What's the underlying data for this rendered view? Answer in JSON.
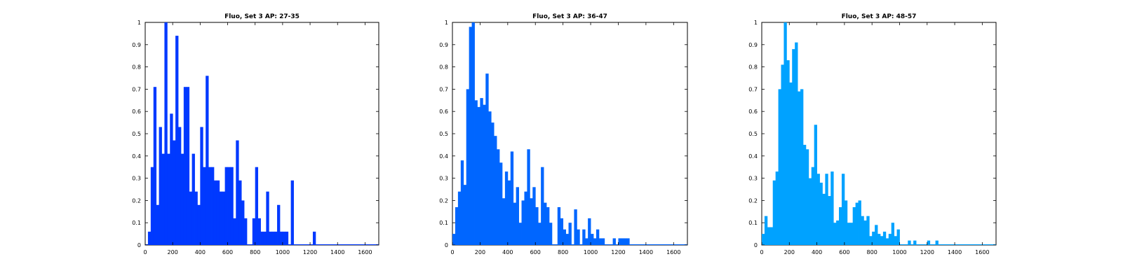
{
  "chart_data": [
    {
      "type": "bar",
      "title": "Fluo, Set 3 AP: 27-35",
      "color": "#0039ff",
      "xlim": [
        0,
        1700
      ],
      "ylim": [
        0,
        1
      ],
      "xticks": [
        0,
        200,
        400,
        600,
        800,
        1000,
        1200,
        1400,
        1600
      ],
      "yticks": [
        0,
        0.1,
        0.2,
        0.3,
        0.4,
        0.5,
        0.6,
        0.7,
        0.8,
        0.9,
        1
      ],
      "bin_width": 20,
      "series": [
        {
          "x": [
            30,
            50,
            70,
            90,
            110,
            130,
            150,
            170,
            190,
            210,
            230,
            250,
            270,
            290,
            310,
            330,
            350,
            370,
            390,
            410,
            430,
            450,
            470,
            490,
            510,
            530,
            550,
            570,
            590,
            610,
            630,
            650,
            670,
            690,
            710,
            730,
            750,
            770,
            790,
            810,
            830,
            850,
            870,
            890,
            910,
            930,
            950,
            970,
            990,
            1010,
            1030,
            1050,
            1070,
            1090,
            1110,
            1130,
            1150,
            1170,
            1190,
            1210,
            1230
          ],
          "values": [
            0.06,
            0.35,
            0.71,
            0.18,
            0.53,
            0.41,
            1.0,
            0.41,
            0.59,
            0.47,
            0.94,
            0.53,
            0.41,
            0.71,
            0.71,
            0.24,
            0.41,
            0.24,
            0.18,
            0.53,
            0.35,
            0.76,
            0.35,
            0.35,
            0.29,
            0.29,
            0.24,
            0.24,
            0.35,
            0.35,
            0.35,
            0.12,
            0.47,
            0.29,
            0.2,
            0.12,
            0.0,
            0.0,
            0.12,
            0.35,
            0.12,
            0.06,
            0.06,
            0.24,
            0.06,
            0.06,
            0.06,
            0.18,
            0.06,
            0.06,
            0.06,
            0.0,
            0.29,
            0.0,
            0.0,
            0.0,
            0.0,
            0.0,
            0.0,
            0.0,
            0.06
          ]
        }
      ]
    },
    {
      "type": "bar",
      "title": "Fluo, Set 3 AP: 36-47",
      "color": "#0066ff",
      "xlim": [
        0,
        1700
      ],
      "ylim": [
        0,
        1
      ],
      "xticks": [
        0,
        200,
        400,
        600,
        800,
        1000,
        1200,
        1400,
        1600
      ],
      "yticks": [
        0,
        0.1,
        0.2,
        0.3,
        0.4,
        0.5,
        0.6,
        0.7,
        0.8,
        0.9,
        1
      ],
      "bin_width": 20,
      "series": [
        {
          "x": [
            10,
            30,
            50,
            70,
            90,
            110,
            130,
            150,
            170,
            190,
            210,
            230,
            250,
            270,
            290,
            310,
            330,
            350,
            370,
            390,
            410,
            430,
            450,
            470,
            490,
            510,
            530,
            550,
            570,
            590,
            610,
            630,
            650,
            670,
            690,
            710,
            730,
            750,
            770,
            790,
            810,
            830,
            850,
            870,
            890,
            910,
            930,
            950,
            970,
            990,
            1010,
            1030,
            1050,
            1070,
            1090,
            1110,
            1130,
            1150,
            1170,
            1190,
            1210,
            1230,
            1250,
            1270
          ],
          "values": [
            0.05,
            0.17,
            0.24,
            0.38,
            0.27,
            0.7,
            0.98,
            1.0,
            0.65,
            0.62,
            0.66,
            0.63,
            0.77,
            0.6,
            0.55,
            0.49,
            0.43,
            0.37,
            0.21,
            0.33,
            0.29,
            0.42,
            0.19,
            0.26,
            0.1,
            0.2,
            0.24,
            0.43,
            0.21,
            0.26,
            0.17,
            0.1,
            0.35,
            0.19,
            0.17,
            0.1,
            0.0,
            0.0,
            0.17,
            0.12,
            0.07,
            0.05,
            0.1,
            0.0,
            0.16,
            0.07,
            0.0,
            0.07,
            0.03,
            0.12,
            0.05,
            0.03,
            0.07,
            0.03,
            0.03,
            0.0,
            0.0,
            0.0,
            0.03,
            0.0,
            0.03,
            0.03,
            0.03,
            0.03
          ]
        }
      ]
    },
    {
      "type": "bar",
      "title": "Fluo, Set 3 AP: 48-57",
      "color": "#00a2ff",
      "xlim": [
        0,
        1700
      ],
      "ylim": [
        0,
        1
      ],
      "xticks": [
        0,
        200,
        400,
        600,
        800,
        1000,
        1200,
        1400,
        1600
      ],
      "yticks": [
        0,
        0.1,
        0.2,
        0.3,
        0.4,
        0.5,
        0.6,
        0.7,
        0.8,
        0.9,
        1
      ],
      "bin_width": 20,
      "series": [
        {
          "x": [
            10,
            30,
            50,
            70,
            90,
            110,
            130,
            150,
            170,
            190,
            210,
            230,
            250,
            270,
            290,
            310,
            330,
            350,
            370,
            390,
            410,
            430,
            450,
            470,
            490,
            510,
            530,
            550,
            570,
            590,
            610,
            630,
            650,
            670,
            690,
            710,
            730,
            750,
            770,
            790,
            810,
            830,
            850,
            870,
            890,
            910,
            930,
            950,
            970,
            990,
            1010,
            1030,
            1050,
            1070,
            1090,
            1110,
            1130,
            1150,
            1170,
            1190,
            1210,
            1230,
            1250,
            1270
          ],
          "values": [
            0.05,
            0.13,
            0.08,
            0.08,
            0.29,
            0.33,
            0.7,
            0.81,
            1.0,
            0.83,
            0.73,
            0.88,
            0.91,
            0.69,
            0.7,
            0.45,
            0.43,
            0.3,
            0.35,
            0.54,
            0.32,
            0.28,
            0.23,
            0.32,
            0.22,
            0.33,
            0.1,
            0.11,
            0.17,
            0.32,
            0.2,
            0.1,
            0.1,
            0.17,
            0.19,
            0.2,
            0.13,
            0.11,
            0.13,
            0.04,
            0.06,
            0.09,
            0.05,
            0.04,
            0.06,
            0.03,
            0.05,
            0.1,
            0.04,
            0.07,
            0.0,
            0.0,
            0.0,
            0.02,
            0.0,
            0.02,
            0.0,
            0.0,
            0.0,
            0.0,
            0.02,
            0.0,
            0.0,
            0.02
          ]
        }
      ]
    }
  ]
}
